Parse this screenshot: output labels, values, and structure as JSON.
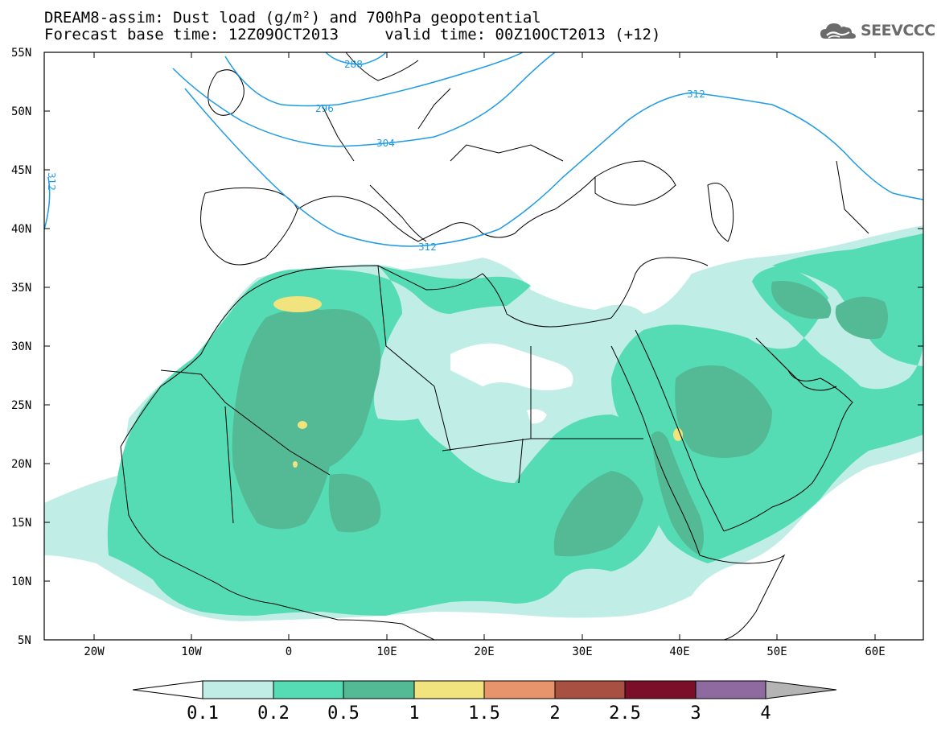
{
  "title": {
    "line1": "DREAM8-assim: Dust load (g/m²) and 700hPa geopotential",
    "line2": "Forecast base time: 12Z09OCT2013     valid time: 00Z10OCT2013 (+12)"
  },
  "logo": {
    "text": "SEEVCCC",
    "icon": "cloud-icon"
  },
  "lat_labels": [
    "55N",
    "50N",
    "45N",
    "40N",
    "35N",
    "30N",
    "25N",
    "20N",
    "15N",
    "10N",
    "5N"
  ],
  "lon_labels": [
    "20W",
    "10W",
    "0",
    "10E",
    "20E",
    "30E",
    "40E",
    "50E",
    "60E"
  ],
  "contour_labels": [
    "288",
    "296",
    "304",
    "312",
    "312",
    "312"
  ],
  "colorbar": {
    "labels": [
      "0.1",
      "0.2",
      "0.5",
      "1",
      "1.5",
      "2",
      "2.5",
      "3",
      "4"
    ],
    "colors": [
      "#ffffff",
      "#c0eee7",
      "#55dcb4",
      "#54b995",
      "#f1e47e",
      "#e7946d",
      "#a85041",
      "#7b0f2a",
      "#8e6aa0",
      "#b4b4b4"
    ]
  },
  "colors": {
    "dust_level1": "#c0eee7",
    "dust_level2": "#55dcb4",
    "dust_level3": "#54b995",
    "dust_level4": "#f1e47e",
    "geopotential_contour": "#1e9be6",
    "coastline": "#000000"
  }
}
